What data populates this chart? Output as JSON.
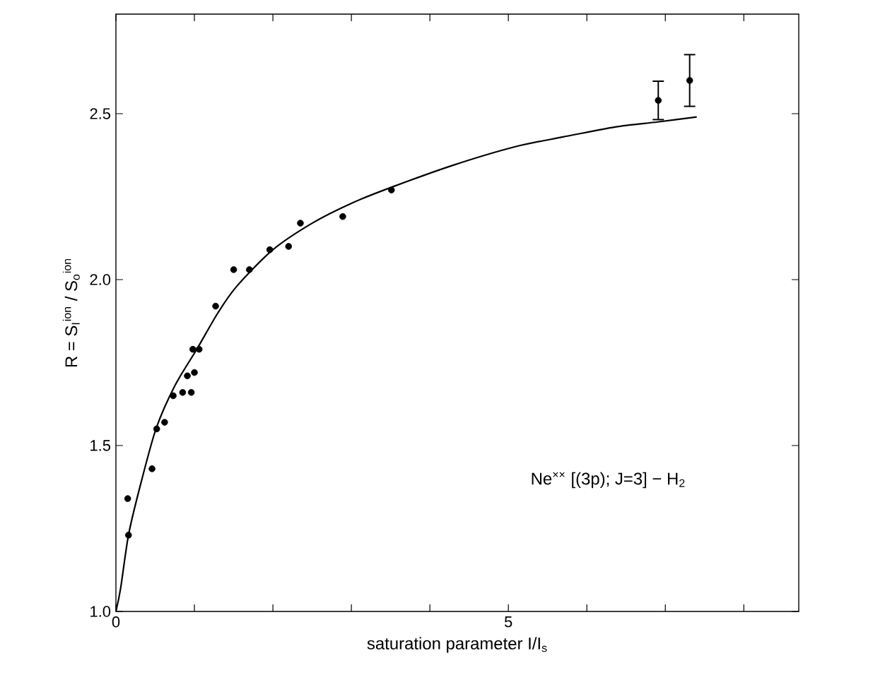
{
  "chart_data": {
    "type": "scatter",
    "xlabel": "saturation parameter I/I$_{s}$",
    "ylabel": "R = S$_{I}$$^{ion}$ / S$_{o}$$^{ion}$",
    "annotations": [
      "Ne$^{××}$ [(3p); J=3] − H$_{2}$"
    ],
    "xlim": [
      0,
      8.7
    ],
    "ylim": [
      1.0,
      2.8
    ],
    "xticks": [
      0,
      {
        "value": 1,
        "label": null
      },
      {
        "value": 2,
        "label": null
      },
      {
        "value": 3,
        "label": null
      },
      {
        "value": 4,
        "label": null
      },
      5,
      {
        "value": 6,
        "label": null
      },
      {
        "value": 7,
        "label": null
      },
      {
        "value": 8,
        "label": null
      }
    ],
    "yticks": [
      {
        "value": 1.0,
        "label": "1.0"
      },
      {
        "value": 1.5,
        "label": "1.5"
      },
      {
        "value": 2.0,
        "label": "2.0"
      },
      {
        "value": 2.5,
        "label": "2.5"
      }
    ],
    "grid": false,
    "series": [
      {
        "color": "#000000",
        "marker": "circle",
        "x": [
          0.15,
          0.16,
          0.46,
          0.52,
          0.62,
          0.73,
          0.85,
          0.91,
          0.96,
          0.98,
          1.0,
          1.06,
          1.27,
          1.5,
          1.7,
          1.96,
          2.2,
          2.35,
          2.89,
          3.51,
          6.91,
          7.31
        ],
        "values": [
          1.34,
          1.23,
          1.43,
          1.55,
          1.57,
          1.65,
          1.66,
          1.71,
          1.66,
          1.79,
          1.72,
          1.79,
          1.92,
          2.03,
          2.03,
          2.09,
          2.1,
          2.17,
          2.19,
          2.27,
          2.54,
          2.6
        ],
        "errors": [
          null,
          null,
          null,
          null,
          null,
          null,
          null,
          null,
          null,
          null,
          null,
          null,
          null,
          null,
          null,
          null,
          null,
          null,
          null,
          null,
          [
            2.48,
            2.6
          ],
          [
            2.52,
            2.68
          ]
        ]
      },
      {
        "type": "line",
        "color": "#000000",
        "marker": "none",
        "line_style": "solid",
        "x": [
          0,
          0.06,
          0.16,
          0.3,
          0.51,
          0.75,
          1.03,
          1.3,
          1.54,
          2.0,
          2.5,
          3.0,
          3.53,
          4.3,
          5.08,
          5.7,
          6.36,
          6.9,
          7.4
        ],
        "values": [
          1.0,
          1.07,
          1.23,
          1.37,
          1.55,
          1.68,
          1.79,
          1.9,
          1.98,
          2.09,
          2.17,
          2.23,
          2.28,
          2.345,
          2.4,
          2.43,
          2.46,
          2.475,
          2.49
        ]
      }
    ]
  }
}
